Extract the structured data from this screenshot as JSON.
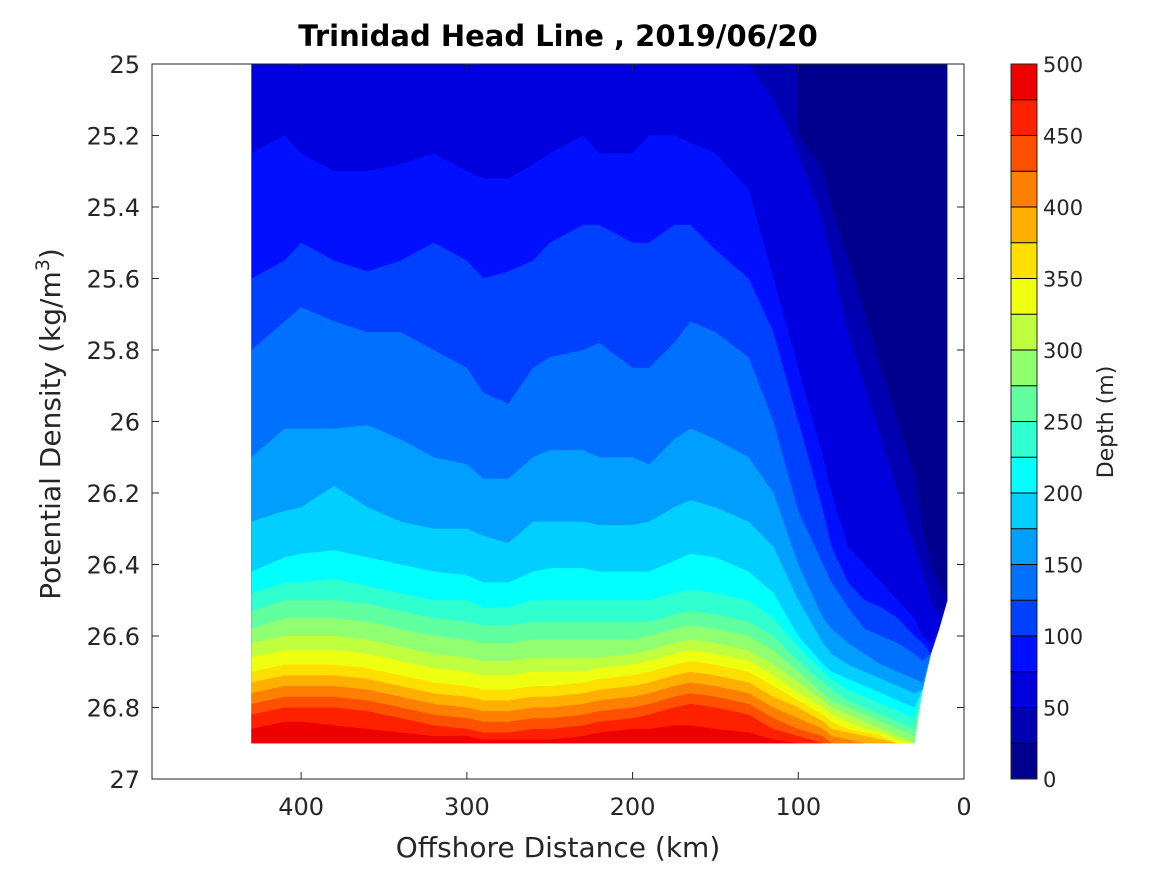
{
  "chart_data": {
    "type": "contour",
    "title": "Trinidad Head Line , 2019/06/20",
    "xlabel": "Offshore Distance (km)",
    "ylabel_main": "Potential Density (kg/m",
    "ylabel_sup": "3",
    "ylabel_end": ")",
    "xlim": [
      490,
      0
    ],
    "ylim": [
      25,
      27
    ],
    "y_reversed": true,
    "xticks": [
      400,
      300,
      200,
      100,
      0
    ],
    "yticks": [
      25,
      25.2,
      25.4,
      25.6,
      25.8,
      26,
      26.2,
      26.4,
      26.6,
      26.8,
      27
    ],
    "colorbar": {
      "label": "Depth (m)",
      "range": [
        0,
        500
      ],
      "step": 25,
      "ticks": [
        0,
        50,
        100,
        150,
        200,
        250,
        300,
        350,
        400,
        450,
        500
      ]
    },
    "x_distances_km": [
      430,
      410,
      400,
      380,
      360,
      340,
      320,
      300,
      290,
      275,
      260,
      250,
      230,
      220,
      200,
      190,
      175,
      165,
      150,
      130,
      115,
      100,
      85,
      80,
      70,
      60,
      50,
      40,
      30,
      25,
      20,
      15,
      10
    ],
    "max_density": [
      26.9,
      26.9,
      26.9,
      26.9,
      26.9,
      26.9,
      26.9,
      26.9,
      26.9,
      26.9,
      26.9,
      26.9,
      26.9,
      26.9,
      26.9,
      26.9,
      26.9,
      26.9,
      26.9,
      26.9,
      26.9,
      26.9,
      26.9,
      26.9,
      26.9,
      26.9,
      26.9,
      26.9,
      26.9,
      26.75,
      26.65,
      26.58,
      26.5
    ],
    "isopycnal_depths": [
      {
        "depth": 25,
        "density": [
          null,
          null,
          null,
          null,
          null,
          null,
          null,
          null,
          null,
          null,
          null,
          null,
          null,
          null,
          null,
          null,
          null,
          null,
          null,
          null,
          null,
          25.2,
          25.3,
          25.4,
          25.55,
          25.7,
          25.85,
          26.0,
          26.15,
          26.3,
          26.4,
          26.45,
          26.5
        ]
      },
      {
        "depth": 50,
        "density": [
          null,
          null,
          null,
          null,
          null,
          null,
          null,
          null,
          null,
          null,
          null,
          null,
          null,
          null,
          null,
          null,
          null,
          null,
          null,
          25.0,
          25.1,
          25.25,
          25.45,
          25.55,
          25.75,
          25.9,
          26.05,
          26.2,
          26.35,
          26.42,
          26.5,
          26.55,
          26.58
        ]
      },
      {
        "depth": 75,
        "density": [
          25.25,
          25.2,
          25.25,
          25.3,
          25.3,
          25.28,
          25.25,
          25.3,
          25.32,
          25.32,
          25.28,
          25.25,
          25.2,
          25.25,
          25.25,
          25.2,
          25.2,
          25.22,
          25.25,
          25.35,
          25.6,
          25.85,
          26.1,
          26.2,
          26.35,
          26.4,
          26.45,
          26.5,
          26.55,
          26.6,
          26.62,
          26.65,
          26.7
        ]
      },
      {
        "depth": 100,
        "density": [
          25.6,
          25.55,
          25.5,
          25.55,
          25.58,
          25.55,
          25.5,
          25.55,
          25.6,
          25.58,
          25.55,
          25.5,
          25.45,
          25.45,
          25.5,
          25.5,
          25.45,
          25.45,
          25.52,
          25.6,
          25.75,
          26.0,
          26.25,
          26.35,
          26.45,
          26.5,
          26.52,
          26.55,
          26.6,
          26.62,
          26.65,
          26.68,
          26.7
        ]
      },
      {
        "depth": 125,
        "density": [
          25.8,
          25.72,
          25.68,
          25.72,
          25.75,
          25.75,
          25.8,
          25.85,
          25.92,
          25.95,
          25.85,
          25.82,
          25.8,
          25.78,
          25.85,
          25.85,
          25.78,
          25.72,
          25.75,
          25.82,
          26.0,
          26.25,
          26.4,
          26.45,
          26.52,
          26.58,
          26.6,
          26.62,
          26.65,
          26.67,
          26.68,
          26.7,
          26.72
        ]
      },
      {
        "depth": 150,
        "density": [
          26.1,
          26.02,
          26.02,
          26.02,
          26.01,
          26.05,
          26.1,
          26.12,
          26.16,
          26.16,
          26.1,
          26.08,
          26.08,
          26.1,
          26.1,
          26.12,
          26.05,
          26.02,
          26.05,
          26.1,
          26.2,
          26.4,
          26.55,
          26.58,
          26.62,
          26.65,
          26.68,
          26.7,
          26.72,
          26.73,
          26.74,
          26.75,
          26.76
        ]
      },
      {
        "depth": 175,
        "density": [
          26.28,
          26.25,
          26.24,
          26.18,
          26.24,
          26.28,
          26.3,
          26.3,
          26.32,
          26.34,
          26.28,
          26.28,
          26.28,
          26.29,
          26.29,
          26.28,
          26.24,
          26.22,
          26.24,
          26.28,
          26.35,
          26.5,
          26.62,
          26.65,
          26.68,
          26.7,
          26.72,
          26.74,
          26.76,
          26.77,
          26.78,
          26.79,
          26.8
        ]
      },
      {
        "depth": 200,
        "density": [
          26.42,
          26.38,
          26.37,
          26.36,
          26.38,
          26.4,
          26.42,
          26.43,
          26.45,
          26.45,
          26.42,
          26.41,
          26.41,
          26.42,
          26.42,
          26.42,
          26.39,
          26.37,
          26.38,
          26.42,
          26.48,
          26.6,
          26.68,
          26.7,
          26.72,
          26.74,
          26.76,
          26.78,
          26.8,
          26.8,
          26.8,
          26.8,
          26.82
        ]
      },
      {
        "depth": 225,
        "density": [
          26.48,
          26.45,
          26.45,
          26.44,
          26.46,
          26.48,
          26.5,
          26.5,
          26.52,
          26.52,
          26.5,
          26.5,
          26.5,
          26.5,
          26.5,
          26.5,
          26.48,
          26.47,
          26.48,
          26.5,
          26.55,
          26.63,
          26.7,
          26.72,
          26.75,
          26.77,
          26.79,
          26.81,
          26.83,
          26.84,
          26.85,
          26.86,
          26.86
        ]
      },
      {
        "depth": 250,
        "density": [
          26.53,
          26.5,
          26.5,
          26.5,
          26.51,
          26.53,
          26.55,
          26.56,
          26.57,
          26.57,
          26.56,
          26.56,
          26.56,
          26.56,
          26.56,
          26.56,
          26.54,
          26.53,
          26.54,
          26.56,
          26.6,
          26.67,
          26.73,
          26.75,
          26.78,
          26.8,
          26.82,
          26.84,
          26.86,
          26.87,
          26.88,
          26.88,
          26.89
        ]
      },
      {
        "depth": 275,
        "density": [
          26.58,
          26.55,
          26.55,
          26.55,
          26.56,
          26.58,
          26.6,
          26.61,
          26.62,
          26.62,
          26.61,
          26.61,
          26.61,
          26.61,
          26.61,
          26.6,
          26.58,
          26.57,
          26.58,
          26.6,
          26.64,
          26.7,
          26.76,
          26.78,
          26.8,
          26.82,
          26.84,
          26.86,
          26.88,
          26.89,
          26.89,
          26.9,
          26.9
        ]
      },
      {
        "depth": 300,
        "density": [
          26.62,
          26.6,
          26.6,
          26.6,
          26.61,
          26.63,
          26.65,
          26.66,
          26.67,
          26.67,
          26.66,
          26.66,
          26.66,
          26.66,
          26.65,
          26.64,
          26.62,
          26.61,
          26.62,
          26.64,
          26.68,
          26.73,
          26.78,
          26.8,
          26.82,
          26.84,
          26.86,
          26.88,
          26.9,
          26.9,
          26.9,
          26.9,
          26.9
        ]
      },
      {
        "depth": 325,
        "density": [
          26.66,
          26.64,
          26.64,
          26.64,
          26.65,
          26.67,
          26.69,
          26.7,
          26.71,
          26.71,
          26.7,
          26.7,
          26.7,
          26.69,
          26.68,
          26.67,
          26.65,
          26.64,
          26.65,
          26.67,
          26.71,
          26.76,
          26.8,
          26.82,
          26.84,
          26.86,
          26.87,
          26.89,
          26.9,
          26.9,
          26.9,
          26.9,
          26.9
        ]
      },
      {
        "depth": 350,
        "density": [
          26.7,
          26.68,
          26.68,
          26.68,
          26.69,
          26.71,
          26.73,
          26.74,
          26.75,
          26.75,
          26.74,
          26.74,
          26.73,
          26.72,
          26.71,
          26.7,
          26.68,
          26.67,
          26.68,
          26.7,
          26.74,
          26.78,
          26.82,
          26.84,
          26.86,
          26.87,
          26.88,
          26.9,
          26.9,
          26.9,
          26.9,
          26.9,
          26.9
        ]
      },
      {
        "depth": 375,
        "density": [
          26.73,
          26.71,
          26.71,
          26.71,
          26.72,
          26.74,
          26.76,
          26.77,
          26.78,
          26.78,
          26.77,
          26.77,
          26.76,
          26.75,
          26.74,
          26.73,
          26.71,
          26.7,
          26.71,
          26.73,
          26.77,
          26.8,
          26.84,
          26.86,
          26.87,
          26.88,
          26.89,
          26.9,
          26.9,
          26.9,
          26.9,
          26.9,
          26.9
        ]
      },
      {
        "depth": 400,
        "density": [
          26.76,
          26.74,
          26.74,
          26.74,
          26.75,
          26.77,
          26.79,
          26.8,
          26.81,
          26.81,
          26.8,
          26.8,
          26.79,
          26.78,
          26.77,
          26.76,
          26.74,
          26.73,
          26.74,
          26.76,
          26.8,
          26.83,
          26.86,
          26.88,
          26.89,
          26.9,
          26.9,
          26.9,
          26.9,
          26.9,
          26.9,
          26.9,
          26.9
        ]
      },
      {
        "depth": 425,
        "density": [
          26.79,
          26.77,
          26.77,
          26.77,
          26.78,
          26.8,
          26.82,
          26.83,
          26.84,
          26.84,
          26.83,
          26.83,
          26.82,
          26.81,
          26.8,
          26.79,
          26.77,
          26.76,
          26.77,
          26.79,
          26.83,
          26.86,
          26.88,
          26.9,
          26.9,
          26.9,
          26.9,
          26.9,
          26.9,
          26.9,
          26.9,
          26.9,
          26.9
        ]
      },
      {
        "depth": 450,
        "density": [
          26.82,
          26.8,
          26.8,
          26.8,
          26.81,
          26.83,
          26.85,
          26.86,
          26.87,
          26.87,
          26.86,
          26.86,
          26.85,
          26.84,
          26.83,
          26.82,
          26.8,
          26.79,
          26.8,
          26.82,
          26.86,
          26.88,
          26.9,
          26.9,
          26.9,
          26.9,
          26.9,
          26.9,
          26.9,
          26.9,
          26.9,
          26.9,
          26.9
        ]
      },
      {
        "depth": 475,
        "density": [
          26.86,
          26.84,
          26.84,
          26.85,
          26.86,
          26.87,
          26.88,
          26.88,
          26.89,
          26.89,
          26.89,
          26.89,
          26.88,
          26.87,
          26.86,
          26.86,
          26.85,
          26.85,
          26.86,
          26.87,
          26.89,
          26.9,
          26.9,
          26.9,
          26.9,
          26.9,
          26.9,
          26.9,
          26.9,
          26.9,
          26.9,
          26.9,
          26.9
        ]
      }
    ],
    "surface_deep_patches": [
      {
        "depth": 75,
        "density_top": 25,
        "x_km": [
          420,
          405,
          395,
          385
        ]
      },
      {
        "depth": 75,
        "density_top": 25,
        "x_km": [
          290,
          270,
          255,
          240
        ]
      },
      {
        "depth": 475,
        "density_bottom": 26.9,
        "x_km": [
          420,
          400,
          380,
          360
        ]
      }
    ],
    "colors": [
      "#00008f",
      "#0000b3",
      "#0000df",
      "#0010ff",
      "#0040ff",
      "#0070ff",
      "#009fff",
      "#00cfff",
      "#00ffff",
      "#30ffcf",
      "#60ff9f",
      "#90ff70",
      "#bfff40",
      "#efff10",
      "#ffdf00",
      "#ffaf00",
      "#ff8000",
      "#ff5000",
      "#ff2000",
      "#ef0000",
      "#bf0000"
    ]
  }
}
